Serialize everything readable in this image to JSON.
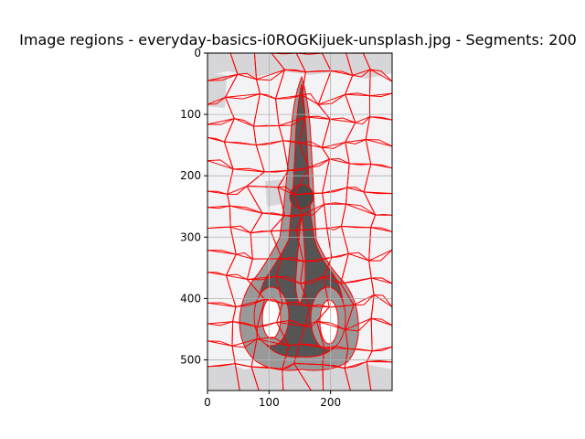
{
  "chart_data": {
    "type": "image",
    "title": "Image regions - everyday-basics-i0ROGKijuek-unsplash.jpg - Segments: 200",
    "xlabel": "",
    "ylabel": "",
    "xlim": [
      0,
      300
    ],
    "ylim": [
      550,
      0
    ],
    "x_ticks": [
      0,
      100,
      200
    ],
    "y_ticks": [
      0,
      100,
      200,
      300,
      400,
      500
    ],
    "grid": true,
    "segments": 200,
    "boundary_color": "#ff0000",
    "colors": {
      "background_light": "#f3f3f5",
      "background_mid": "#d6d6d8",
      "object_gray": "#999999",
      "object_dark": "#555555",
      "object_darker": "#4a4a4a",
      "handle_hole": "#ffffff"
    }
  }
}
